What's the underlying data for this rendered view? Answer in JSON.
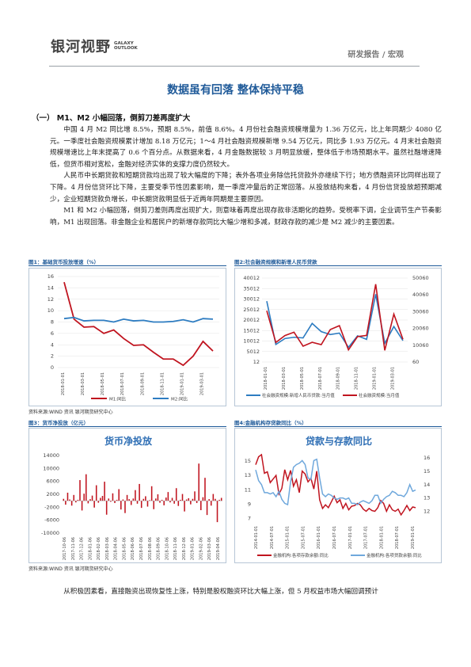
{
  "header": {
    "logo_cn": "银河视野",
    "logo_en_line1": "GALAXY",
    "logo_en_line2": "OUTLOOK",
    "category": "研发报告 / 宏观"
  },
  "title": "数据虽有回落 整体保持平稳",
  "section": {
    "heading": "（一）  M1、M2 小幅回落，倒剪刀差再度扩大"
  },
  "paragraphs": [
    "中国 4 月 M2 同比增 8.5%，预期 8.5%，前值 8.6%。4 月份社会融资规模增量为 1.36 万亿元，比上年同期少 4080 亿元。一季度社会融资规模累计增加 8.18 万亿元；1～4 月社会融资规模新增 9.54 万亿元，同比多 1.93 万亿元。4 月末社会融资规模增速比上年末提高了 0.6 个百分点。从数据来看，4 月金融数据较 3 月明显放缓，整体低于市场预期水平。虽然社融增速降低，但货币相对宽松，金融对经济实体的支撑力度仍然较大。",
    "人民币中长期贷款和短期贷款均出现了较大幅度的下降；表外各项业务除信托贷款外亦继续下行；地方债融资环比同样出现了下降。4 月份信贷环比下降，主要受季节性因素影响，是一季度冲量后的正常回落。从投放结构来看，4 月份信贷投放超预期减少，企业短期贷款负增长，中长期贷款明显低于近两年同期是主要原因。",
    "M1 和 M2 小幅回落，倒剪刀差则再度出现扩大，则意味着再度出现存款非活期化的趋势。受税率下调，企业调节生产节奏影响，M1 出现回落。非金融企业和居民户的新增存款同比大幅少增和多减，财政存款的减少是 M2 减少的主要因素。"
  ],
  "figures": [
    {
      "caption": "图1：基础货币投放增速（%）",
      "chart_data": {
        "type": "line",
        "x": [
          "2018-01-01",
          "2018-02-01",
          "2018-03-01",
          "2018-04-01",
          "2018-05-01",
          "2018-06-01",
          "2018-07-01",
          "2018-08-01",
          "2018-09-01",
          "2018-10-01",
          "2018-11-01",
          "2018-12-01",
          "2019-01-01",
          "2019-02-01",
          "2019-03-01",
          "2019-04-01"
        ],
        "x_ticks": [
          "2018-01-01",
          "2018-03-01",
          "2018-05-01",
          "2018-07-01",
          "2018-09-01",
          "2018-11-01",
          "2019-01-01",
          "2019-03-01"
        ],
        "series": [
          {
            "name": "M1:同比",
            "values": [
              15.0,
              8.5,
              7.1,
              7.2,
              6.0,
              6.6,
              5.1,
              3.9,
              4.0,
              2.7,
              1.5,
              1.5,
              0.4,
              2.0,
              4.6,
              2.9
            ]
          },
          {
            "name": "M2:同比",
            "values": [
              8.6,
              8.8,
              8.2,
              8.3,
              8.3,
              8.0,
              8.5,
              8.2,
              8.3,
              8.0,
              8.0,
              8.1,
              8.4,
              8.0,
              8.6,
              8.5
            ]
          }
        ],
        "y_ticks": [
          0,
          2,
          4,
          6,
          8,
          10,
          12,
          14,
          16
        ],
        "ylim": [
          0,
          16
        ],
        "colors": [
          "#c0141f",
          "#2d7cc1"
        ]
      }
    },
    {
      "caption": "图2:社会融资规模和新增人民币贷款",
      "chart_data": {
        "type": "line",
        "x": [
          "2018-01-01",
          "2018-02-01",
          "2018-03-01",
          "2018-04-01",
          "2018-05-01",
          "2018-06-01",
          "2018-07-01",
          "2018-08-01",
          "2018-09-01",
          "2018-10-01",
          "2018-11-01",
          "2018-12-01",
          "2019-01-01",
          "2019-02-01",
          "2019-03-01",
          "2019-04-01"
        ],
        "x_ticks": [
          "2018-01-01",
          "2018-03-01",
          "2018-05-01",
          "2018-07-01",
          "2018-09-01",
          "2018-11-01",
          "2019-01-01",
          "2019-03-01"
        ],
        "series": [
          {
            "name": "社会融资规模:新增人民币贷款:当月值",
            "axis": "left",
            "values": [
              29000,
              8400,
              11200,
              11800,
              11500,
              18400,
              14500,
              13100,
              13800,
              7000,
              12500,
              10800,
              32300,
              8900,
              16900,
              10200
            ]
          },
          {
            "name": "社会融资规模:当月值",
            "axis": "right",
            "values": [
              30600,
              11700,
              15800,
              17800,
              9500,
              11800,
              10400,
              19400,
              21700,
              7300,
              15200,
              15900,
              46400,
              7000,
              28600,
              13600
            ]
          }
        ],
        "left_ticks": [
          12,
          5012,
          10012,
          15012,
          20012,
          25012,
          30012,
          35012,
          40012
        ],
        "left_ylim": [
          12,
          40012
        ],
        "right_ticks": [
          60,
          10060,
          20060,
          30060,
          40060,
          50060
        ],
        "right_ylim": [
          60,
          50060
        ],
        "colors": [
          "#2d7cc1",
          "#c0141f"
        ]
      }
    },
    {
      "caption": "图3：货币净投放（亿元）",
      "chart_data": {
        "type": "bar",
        "title": "货币净投放",
        "x_ticks": [
          "2017-10-06",
          "2017-11-06",
          "2017-12-06",
          "2018-01-06",
          "2018-02-06",
          "2018-03-06",
          "2018-04-06",
          "2018-05-06",
          "2018-06-06",
          "2018-07-06",
          "2018-08-06",
          "2018-09-06",
          "2018-10-06",
          "2018-11-06",
          "2018-12-06",
          "2019-01-06",
          "2019-02-06",
          "2019-03-06",
          "2019-04-06"
        ],
        "values": [
          600,
          -1200,
          2500,
          400,
          -1500,
          1800,
          -500,
          300,
          6400,
          -3000,
          2200,
          8200,
          -800,
          500,
          1600,
          -2100,
          4800,
          -600,
          900,
          1500,
          5900,
          -4300,
          700,
          -300,
          2300,
          -700,
          300,
          3600,
          -2700,
          400,
          -3800,
          1800,
          500,
          -1300,
          700,
          3300,
          -900,
          5200,
          -2200,
          600,
          1400,
          -1800,
          200,
          4500,
          -2600,
          700,
          2000,
          -600,
          300,
          -1400,
          1000,
          2700,
          -500,
          900,
          -900,
          3900,
          -1600,
          300,
          2100,
          -3300,
          400,
          800,
          -1100,
          600,
          2900,
          -700,
          11500,
          -2900,
          1100,
          7100,
          -4400,
          500,
          -1500,
          2100,
          600,
          -6600,
          300,
          900
        ],
        "y_ticks": [
          -10000,
          -6000,
          -2000,
          2000,
          6000,
          10000,
          14000
        ],
        "ylim": [
          -10000,
          14000
        ],
        "colors": [
          "#c0141f"
        ]
      }
    },
    {
      "caption": "图4:金融机构存贷款同比（%）",
      "chart_data": {
        "type": "line",
        "title": "贷款与存款同比",
        "x_ticks": [
          "2014-01-01",
          "2014-07-01",
          "2015-01-01",
          "2015-07-01",
          "2016-01-01",
          "2016-07-01",
          "2017-01-01",
          "2017-07-01",
          "2018-01-01",
          "2018-07-01",
          "2019-01-01"
        ],
        "series": [
          {
            "name": "金融机构:各项存款余额:同比",
            "axis": "left",
            "values": [
              14.5,
              15.6,
              15.9,
              13.3,
              13.5,
              12.0,
              12.5,
              13.0,
              10.4,
              11.2,
              13.8,
              12.4,
              13.7,
              11.5,
              12.4,
              10.6,
              13.6,
              13.2,
              12.1,
              12.6,
              11.1,
              13.6,
              9.6,
              8.4,
              8.9,
              8.5,
              9.3,
              10.1,
              9.2,
              9.6,
              8.4,
              9.1,
              8.2,
              8.7,
              8.8,
              9.1,
              8.9,
              8.3,
              8.0,
              8.4,
              8.1,
              8.0,
              8.5,
              9.5,
              9.1,
              8.0,
              8.9,
              8.2,
              8.0,
              8.3,
              7.5,
              8.1,
              8.8,
              8.1,
              8.6,
              8.5
            ]
          },
          {
            "name": "金融机构:各项贷款余额:同比",
            "axis": "right",
            "values": [
              15.1,
              14.3,
              14.0,
              13.4,
              13.4,
              13.3,
              13.4,
              13.1,
              13.5,
              12.9,
              12.6,
              12.5,
              14.2,
              15.3,
              15.5,
              15.6,
              15.8,
              15.5,
              14.5,
              14.4,
              15.8,
              15.9,
              14.5,
              13.3,
              13.1,
              13.3,
              13.2,
              13.0,
              12.9,
              13.0,
              13.0,
              12.9,
              13.0,
              12.6,
              12.6,
              12.5,
              12.7,
              12.8,
              12.7,
              12.6,
              12.8,
              13.2,
              13.2,
              12.6,
              12.9,
              13.1,
              13.2,
              13.5,
              13.4,
              13.2,
              13.2,
              13.1,
              13.4,
              14.0,
              13.5,
              13.6
            ]
          }
        ],
        "left_ticks": [
          7,
          9,
          11,
          13,
          15
        ],
        "left_ylim": [
          6.5,
          16
        ],
        "right_ticks": [
          12,
          13,
          14,
          15,
          16
        ],
        "right_ylim": [
          11.2,
          16.3
        ],
        "colors": [
          "#c0141f",
          "#6fa8dc"
        ]
      }
    }
  ],
  "sources": [
    "资料来源:WIND 资讯    银河期货研究中心",
    "资料来源:WIND 资讯    银河期货研究中心"
  ],
  "bottom_paragraph": "从积极因素看，直接融资出现恢复性上涨，特别是股权融资环比大幅上涨，但 5 月权益市场大幅回调预计"
}
